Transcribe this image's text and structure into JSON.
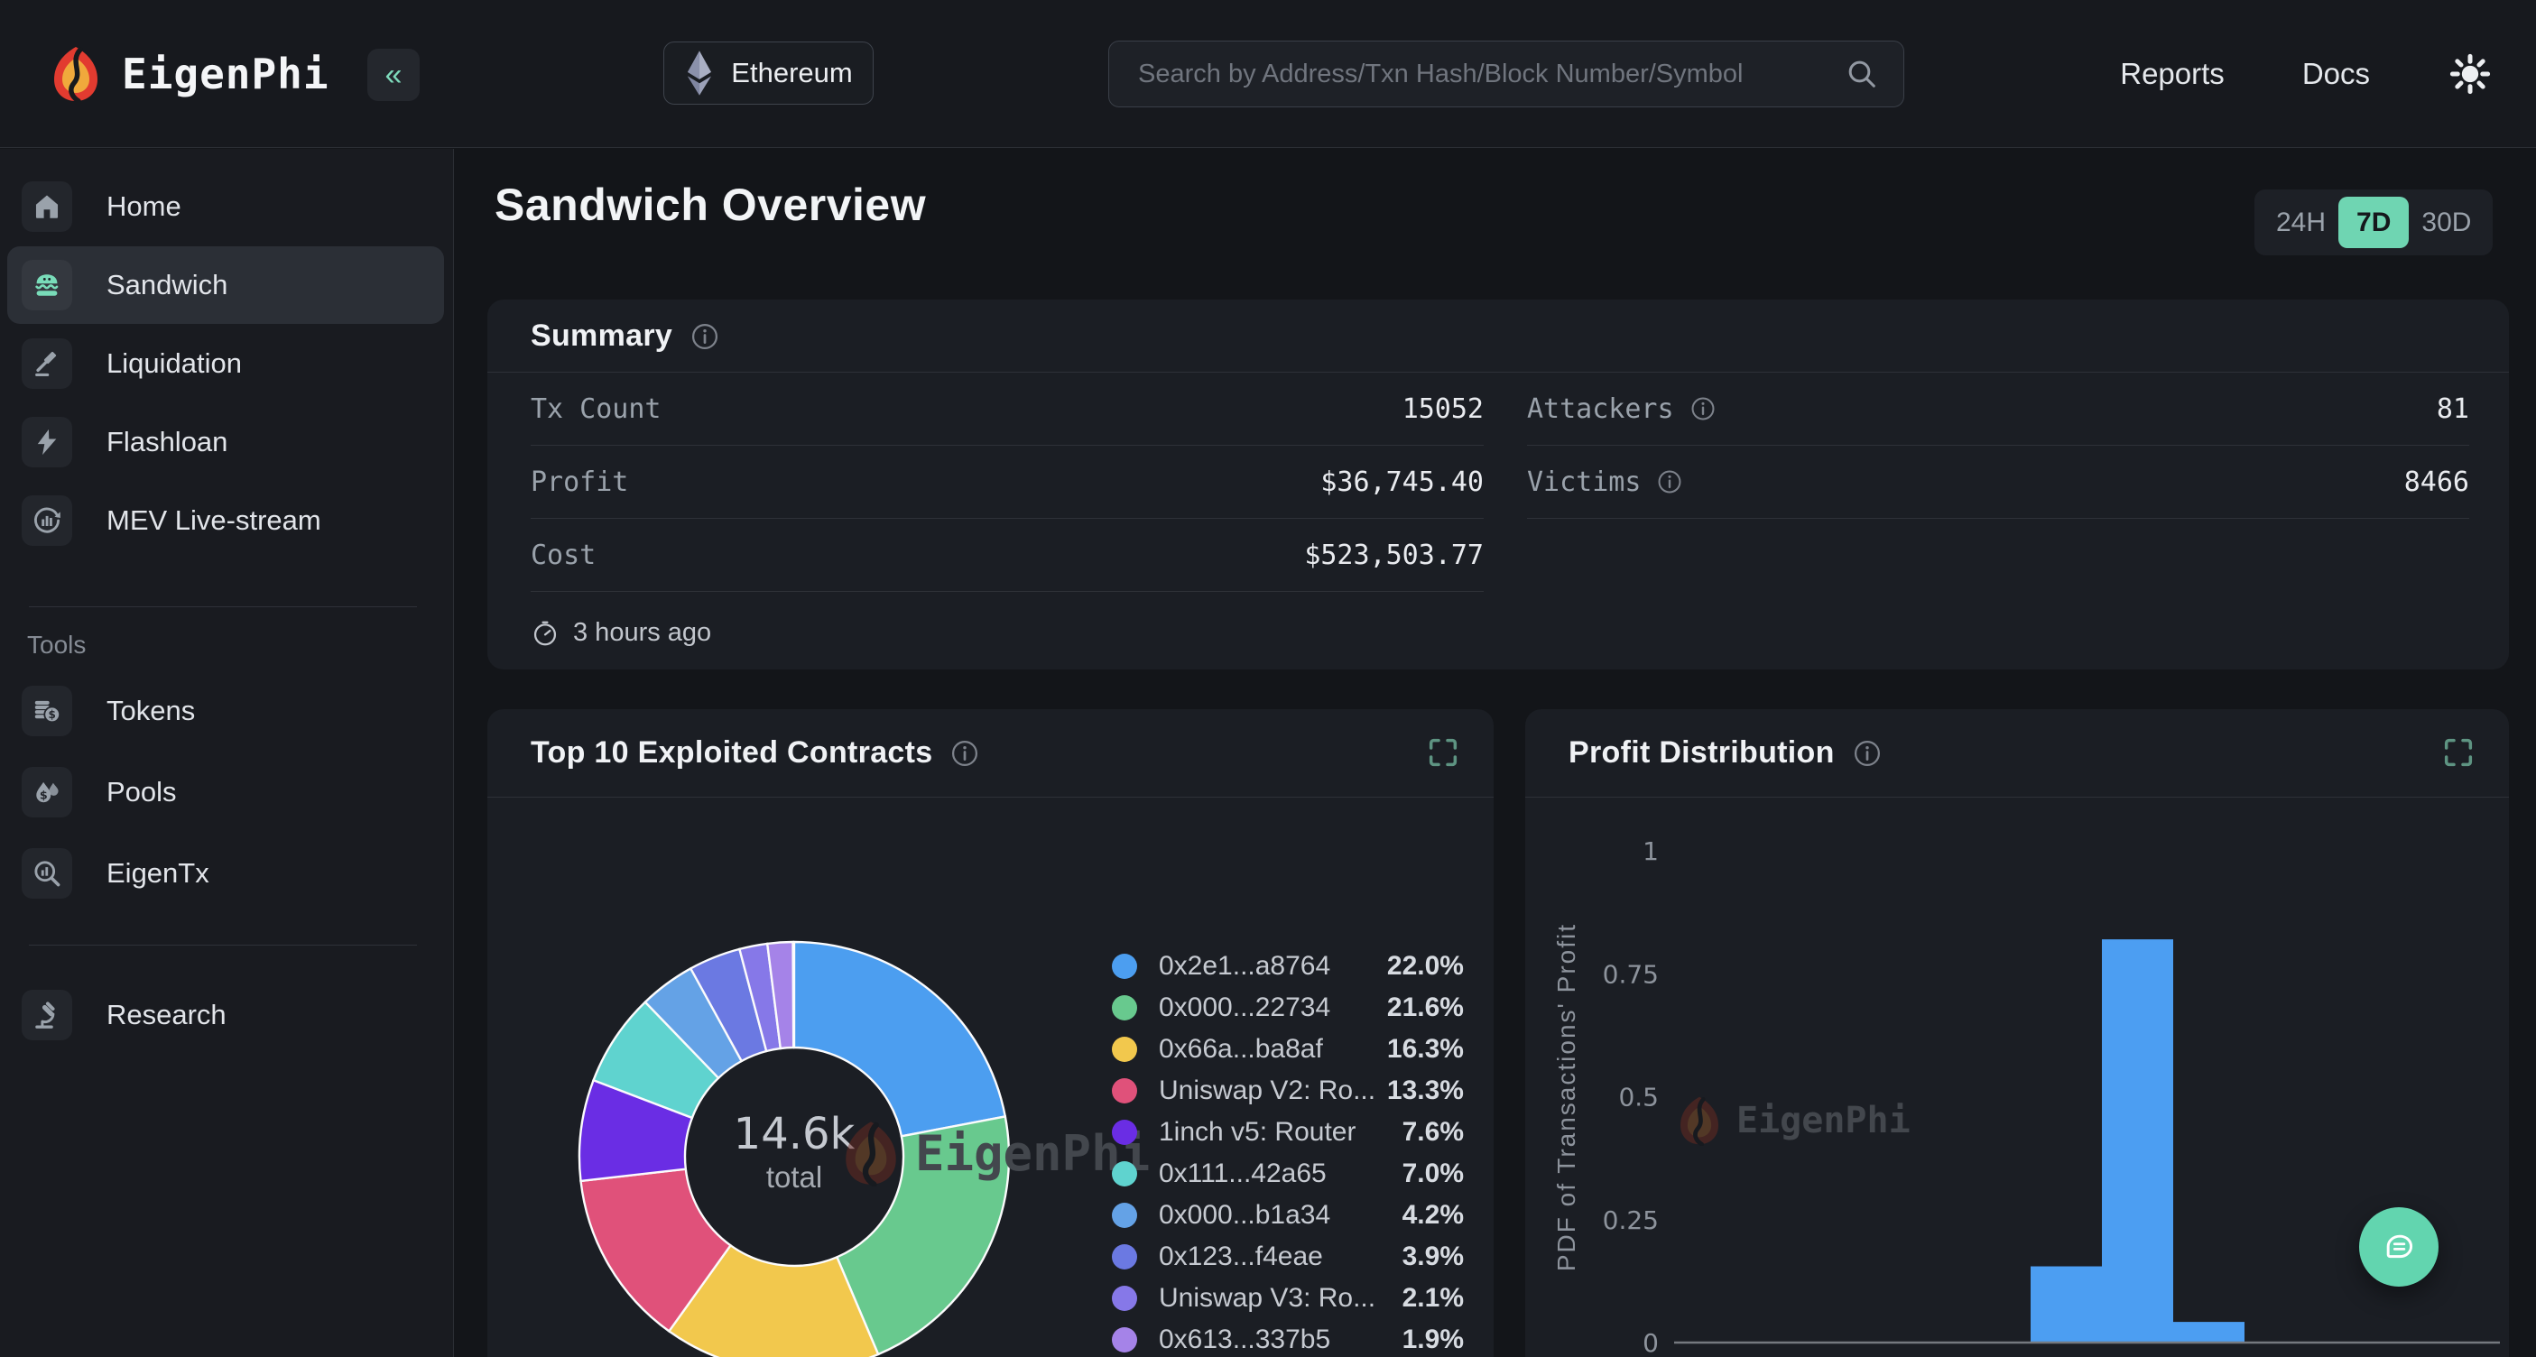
{
  "top_bar": {
    "brand": "EigenPhi",
    "collapse_glyph": "«",
    "network": {
      "label": "Ethereum"
    },
    "search": {
      "placeholder": "Search by Address/Txn Hash/Block Number/Symbol"
    },
    "nav": {
      "reports": "Reports",
      "docs": "Docs"
    }
  },
  "sidebar": {
    "sections": [
      {
        "heading": null,
        "items": [
          {
            "icon": "home-icon",
            "label": "Home",
            "active": false
          },
          {
            "icon": "sandwich-icon",
            "label": "Sandwich",
            "active": true
          },
          {
            "icon": "gavel-icon",
            "label": "Liquidation",
            "active": false
          },
          {
            "icon": "lightning-icon",
            "label": "Flashloan",
            "active": false
          },
          {
            "icon": "live-stream-icon",
            "label": "MEV Live-stream",
            "active": false
          }
        ]
      },
      {
        "heading": "Tools",
        "items": [
          {
            "icon": "coins-icon",
            "label": "Tokens",
            "active": false
          },
          {
            "icon": "drops-icon",
            "label": "Pools",
            "active": false
          },
          {
            "icon": "tx-scan-icon",
            "label": "EigenTx",
            "active": false
          }
        ]
      },
      {
        "heading": null,
        "items": [
          {
            "icon": "microscope-icon",
            "label": "Research",
            "active": false
          }
        ]
      }
    ]
  },
  "page": {
    "title": "Sandwich Overview",
    "time_ranges": [
      {
        "label": "24H",
        "active": false
      },
      {
        "label": "7D",
        "active": true
      },
      {
        "label": "30D",
        "active": false
      }
    ],
    "accent_color": "#6fd5b2"
  },
  "summary": {
    "title": "Summary",
    "rows_left": [
      {
        "label": "Tx Count",
        "value": "15052",
        "info": false
      },
      {
        "label": "Profit",
        "value": "$36,745.40",
        "info": false
      },
      {
        "label": "Cost",
        "value": "$523,503.77",
        "info": false
      }
    ],
    "rows_right": [
      {
        "label": "Attackers",
        "value": "81",
        "info": true
      },
      {
        "label": "Victims",
        "value": "8466",
        "info": true
      }
    ],
    "updated": "3 hours ago"
  },
  "cards": {
    "top10": {
      "title": "Top 10 Exploited Contracts"
    },
    "profit": {
      "title": "Profit Distribution"
    }
  },
  "watermark": "EigenPhi",
  "chart_data": [
    {
      "id": "top10-donut",
      "type": "pie",
      "title": "Top 10 Exploited Contracts",
      "center": {
        "value": "14.6k",
        "label": "total"
      },
      "legend_position": "right",
      "segments": [
        {
          "label": "0x2e1...a8764",
          "pct": 22.0,
          "color": "#4c9ef0"
        },
        {
          "label": "0x000...22734",
          "pct": 21.6,
          "color": "#68c98e"
        },
        {
          "label": "0x66a...ba8af",
          "pct": 16.3,
          "color": "#f2c84d"
        },
        {
          "label": "Uniswap V2: Ro...",
          "pct": 13.3,
          "color": "#e0517a"
        },
        {
          "label": "1inch v5: Router",
          "pct": 7.6,
          "color": "#6a2de4"
        },
        {
          "label": "0x111...42a65",
          "pct": 7.0,
          "color": "#5fd3cf"
        },
        {
          "label": "0x000...b1a34",
          "pct": 4.2,
          "color": "#64a2e6"
        },
        {
          "label": "0x123...f4eae",
          "pct": 3.9,
          "color": "#6b79e2"
        },
        {
          "label": "Uniswap V3: Ro...",
          "pct": 2.1,
          "color": "#8678e8"
        },
        {
          "label": "0x613...337b5",
          "pct": 1.9,
          "color": "#a583e8"
        }
      ]
    },
    {
      "id": "profit-histogram",
      "type": "bar",
      "title": "Profit Distribution",
      "ylabel": "PDF of Transactions' Profit",
      "ylim": [
        0,
        1
      ],
      "yticks": [
        0,
        0.25,
        0.5,
        0.75,
        1
      ],
      "ytick_labels": [
        "0",
        "0.25",
        "0.5",
        "0.75",
        "1"
      ],
      "grid": false,
      "bar_color": "#4c9ef2",
      "values": [
        0.155,
        0.82,
        0.042
      ]
    }
  ]
}
